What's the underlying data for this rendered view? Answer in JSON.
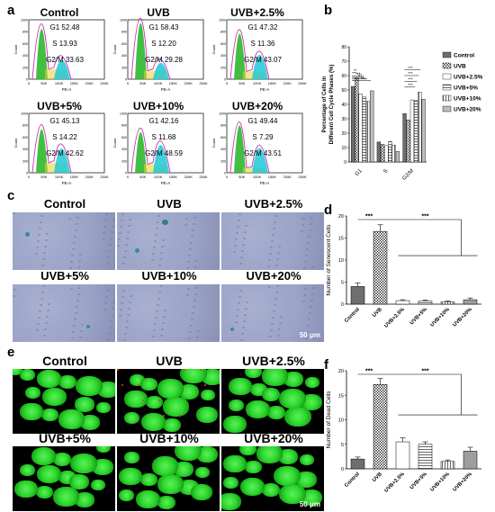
{
  "panels": {
    "a": "a",
    "b": "b",
    "c": "c",
    "d": "d",
    "e": "e",
    "f": "f"
  },
  "histograms": [
    {
      "title": "Control",
      "stats": [
        "G1 52.48",
        "S 13.93",
        "G2/M 33.63"
      ],
      "g1": 0.52,
      "s": 0.14,
      "g2": 0.34
    },
    {
      "title": "UVB",
      "stats": [
        "G1 58.43",
        "S 12.20",
        "G2/M 29.28"
      ],
      "g1": 0.58,
      "s": 0.12,
      "g2": 0.29
    },
    {
      "title": "UVB+2.5%",
      "stats": [
        "G1 47.32",
        "S 11.36",
        "G2/M 43.07"
      ],
      "g1": 0.47,
      "s": 0.11,
      "g2": 0.43
    },
    {
      "title": "UVB+5%",
      "stats": [
        "G1 45.13",
        "S 14.22",
        "G2/M 42.62"
      ],
      "g1": 0.45,
      "s": 0.14,
      "g2": 0.43
    },
    {
      "title": "UVB+10%",
      "stats": [
        "G1 42.16",
        "S 11.68",
        "G2/M 48.59"
      ],
      "g1": 0.42,
      "s": 0.12,
      "g2": 0.49
    },
    {
      "title": "UVB+20%",
      "stats": [
        "G1 49.44",
        "S 7.29",
        "G2/M 43.51"
      ],
      "g1": 0.49,
      "s": 0.07,
      "g2": 0.44
    }
  ],
  "histogram_axis": {
    "ylabel": "Count",
    "xlabel": "PE-A",
    "xticks": [
      "0",
      "50K",
      "100K",
      "150K",
      "200K",
      "250K"
    ],
    "yticks": [
      "0",
      "200",
      "400",
      "600",
      "800",
      "1000"
    ]
  },
  "colors": {
    "g1": "#2eb82e",
    "s": "#e6d229",
    "g2": "#1ec8d6",
    "fit": "#cc2fb7",
    "micro_bg": "#9aa3c6",
    "fluor_bg": "#000000",
    "fluor_green": "#2fd82f"
  },
  "micro_titles_c": [
    "Control",
    "UVB",
    "UVB+2.5%",
    "UVB+5%",
    "UVB+10%",
    "UVB+20%"
  ],
  "micro_titles_e": [
    "Control",
    "UVB",
    "UVB+2.5%",
    "UVB+5%",
    "UVB+10%",
    "UVB+20%"
  ],
  "scalebar": "50 μm",
  "chart_data": [
    {
      "id": "b",
      "type": "bar",
      "ylabel": "Percentage of Cells in Different Cell Cycle Phases (%)",
      "categories": [
        "G1",
        "S",
        "G2/M"
      ],
      "ylim": [
        0,
        80
      ],
      "yticks": [
        "0",
        "10",
        "20",
        "30",
        "40",
        "50",
        "60",
        "70",
        "80"
      ],
      "legend": "right",
      "series": [
        {
          "name": "Control",
          "values": [
            52.48,
            13.93,
            33.63
          ]
        },
        {
          "name": "UVB",
          "values": [
            58.43,
            12.2,
            29.28
          ]
        },
        {
          "name": "UVB+2.5%",
          "values": [
            47.32,
            11.36,
            43.07
          ]
        },
        {
          "name": "UVB+5%",
          "values": [
            45.13,
            14.22,
            42.62
          ]
        },
        {
          "name": "UVB+10%",
          "values": [
            42.16,
            11.68,
            48.59
          ]
        },
        {
          "name": "UVB+20%",
          "values": [
            49.44,
            7.29,
            43.51
          ]
        }
      ],
      "annotations": [
        "**",
        "***",
        "***",
        "***",
        "***"
      ]
    },
    {
      "id": "d",
      "type": "bar",
      "ylabel": "Number of Senescent Cells",
      "categories": [
        "Control",
        "UVB",
        "UVB+2.5%",
        "UVB+5%",
        "UVB+10%",
        "UVB+20%"
      ],
      "values": [
        4.0,
        16.5,
        0.8,
        0.7,
        0.5,
        1.0
      ],
      "errors": [
        0.8,
        1.5,
        0.2,
        0.2,
        0.2,
        0.4
      ],
      "ylim": [
        0,
        20
      ],
      "yticks": [
        "0",
        "5",
        "10",
        "15",
        "20"
      ],
      "annotations": [
        "***",
        "***"
      ]
    },
    {
      "id": "f",
      "type": "bar",
      "ylabel": "Number of Dead Cells",
      "categories": [
        "Control",
        "UVB",
        "UVB+2.5%",
        "UVB+5%",
        "UVB+10%",
        "UVB+20%"
      ],
      "values": [
        2.0,
        17.2,
        5.5,
        5.0,
        1.5,
        3.6
      ],
      "errors": [
        0.4,
        1.2,
        0.8,
        0.5,
        0.3,
        0.8
      ],
      "ylim": [
        0,
        20
      ],
      "yticks": [
        "0",
        "5",
        "10",
        "15",
        "20"
      ],
      "annotations": [
        "***",
        "***"
      ]
    }
  ]
}
